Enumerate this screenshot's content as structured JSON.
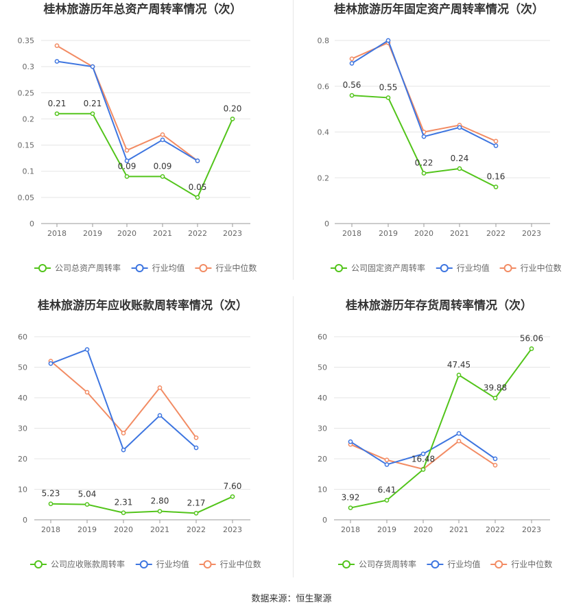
{
  "source_label": "数据来源：恒生聚源",
  "colors": {
    "company": "#52c41a",
    "avg": "#3d75e0",
    "median": "#f28b63",
    "grid": "#e5e5e5",
    "axis": "#999999",
    "text": "#666666",
    "title": "#333333"
  },
  "chart_data": [
    {
      "type": "line",
      "title": "桂林旅游历年总资产周转率情况（次）",
      "categories": [
        "2018",
        "2019",
        "2020",
        "2021",
        "2022",
        "2023"
      ],
      "ylim": [
        0,
        0.35
      ],
      "yticks": [
        "0",
        "0.05",
        "0.1",
        "0.15",
        "0.2",
        "0.25",
        "0.3",
        "0.35"
      ],
      "ytick_values": [
        0,
        0.05,
        0.1,
        0.15,
        0.2,
        0.25,
        0.3,
        0.35
      ],
      "legend_position": "bottom",
      "series": [
        {
          "name": "公司总资产周转率",
          "color_key": "company",
          "values": [
            0.21,
            0.21,
            0.09,
            0.09,
            0.05,
            0.2
          ],
          "labels": [
            "0.21",
            "0.21",
            "0.09",
            "0.09",
            "0.05",
            "0.20"
          ]
        },
        {
          "name": "行业均值",
          "color_key": "avg",
          "values": [
            0.31,
            0.3,
            0.12,
            0.16,
            0.12,
            null
          ]
        },
        {
          "name": "行业中位数",
          "color_key": "median",
          "values": [
            0.34,
            0.3,
            0.14,
            0.17,
            0.12,
            null
          ]
        }
      ]
    },
    {
      "type": "line",
      "title": "桂林旅游历年固定资产周转率情况（次）",
      "categories": [
        "2018",
        "2019",
        "2020",
        "2021",
        "2022",
        "2023"
      ],
      "ylim": [
        0,
        0.8
      ],
      "yticks": [
        "0",
        "0.2",
        "0.4",
        "0.6",
        "0.8"
      ],
      "ytick_values": [
        0,
        0.2,
        0.4,
        0.6,
        0.8
      ],
      "legend_position": "bottom",
      "series": [
        {
          "name": "公司固定资产周转率",
          "color_key": "company",
          "values": [
            0.56,
            0.55,
            0.22,
            0.24,
            0.16,
            null
          ],
          "labels": [
            "0.56",
            "0.55",
            "0.22",
            "0.24",
            "0.16",
            ""
          ]
        },
        {
          "name": "行业均值",
          "color_key": "avg",
          "values": [
            0.7,
            0.8,
            0.38,
            0.42,
            0.34,
            null
          ]
        },
        {
          "name": "行业中位数",
          "color_key": "median",
          "values": [
            0.72,
            0.79,
            0.4,
            0.43,
            0.36,
            null
          ]
        }
      ]
    },
    {
      "type": "line",
      "title": "桂林旅游历年应收账款周转率情况（次）",
      "categories": [
        "2018",
        "2019",
        "2020",
        "2021",
        "2022",
        "2023"
      ],
      "ylim": [
        0,
        60
      ],
      "yticks": [
        "0",
        "10",
        "20",
        "30",
        "40",
        "50",
        "60"
      ],
      "ytick_values": [
        0,
        10,
        20,
        30,
        40,
        50,
        60
      ],
      "legend_position": "bottom",
      "series": [
        {
          "name": "公司应收账款周转率",
          "color_key": "company",
          "values": [
            5.23,
            5.04,
            2.31,
            2.8,
            2.17,
            7.6
          ],
          "labels": [
            "5.23",
            "5.04",
            "2.31",
            "2.80",
            "2.17",
            "7.60"
          ]
        },
        {
          "name": "行业均值",
          "color_key": "avg",
          "values": [
            51.2,
            55.8,
            22.9,
            34.2,
            23.6,
            null
          ]
        },
        {
          "name": "行业中位数",
          "color_key": "median",
          "values": [
            52.0,
            41.8,
            28.4,
            43.3,
            26.9,
            null
          ]
        }
      ]
    },
    {
      "type": "line",
      "title": "桂林旅游历年存货周转率情况（次）",
      "categories": [
        "2018",
        "2019",
        "2020",
        "2021",
        "2022",
        "2023"
      ],
      "ylim": [
        0,
        60
      ],
      "yticks": [
        "0",
        "10",
        "20",
        "30",
        "40",
        "50",
        "60"
      ],
      "ytick_values": [
        0,
        10,
        20,
        30,
        40,
        50,
        60
      ],
      "legend_position": "bottom",
      "series": [
        {
          "name": "公司存货周转率",
          "color_key": "company",
          "values": [
            3.92,
            6.41,
            16.48,
            47.45,
            39.88,
            56.06
          ],
          "labels": [
            "3.92",
            "6.41",
            "16.48",
            "47.45",
            "39.88",
            "56.06"
          ]
        },
        {
          "name": "行业均值",
          "color_key": "avg",
          "values": [
            25.6,
            18.1,
            21.6,
            28.3,
            20.0,
            null
          ]
        },
        {
          "name": "行业中位数",
          "color_key": "median",
          "values": [
            24.7,
            19.6,
            16.6,
            25.8,
            17.9,
            null
          ]
        }
      ]
    }
  ]
}
